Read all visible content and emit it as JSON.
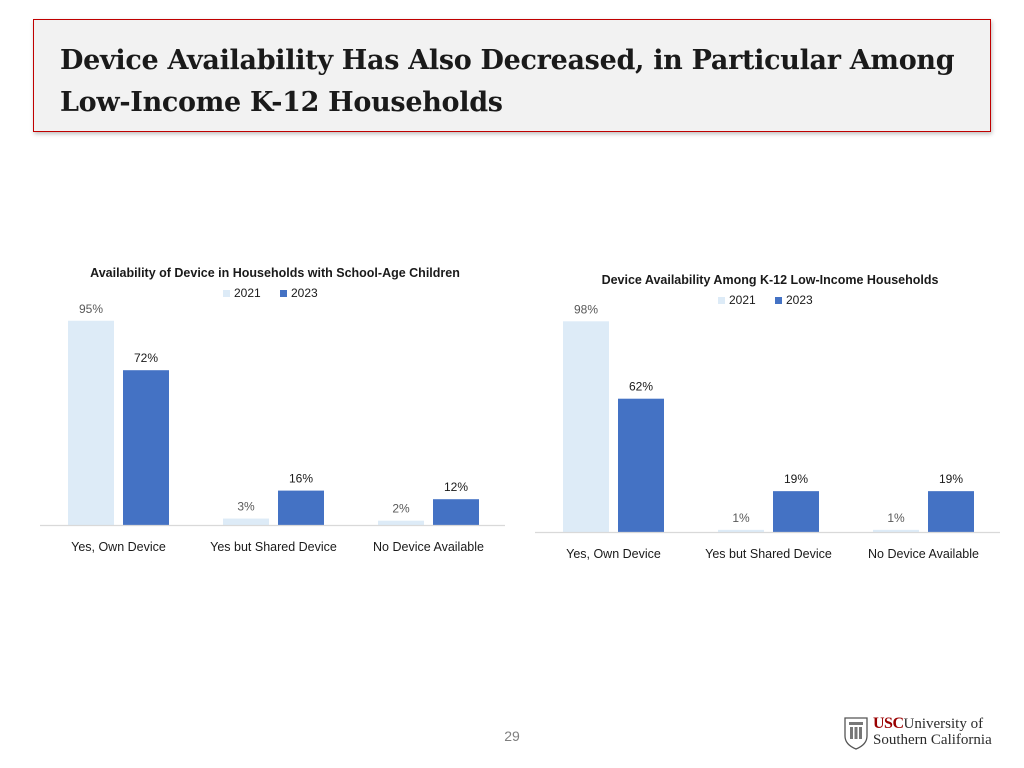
{
  "slide": {
    "title": "Device Availability Has Also Decreased, in Particular Among Low-Income K-12 Households",
    "page_number": "29",
    "logo": {
      "usc": "USC",
      "line1": "University of",
      "line2": "Southern California"
    }
  },
  "colors": {
    "series_2021": "#ddebf7",
    "series_2023": "#4472c4",
    "axis": "#d9d9d9",
    "text": "#1a1a1a",
    "label_2021": "#595959"
  },
  "chart_data": [
    {
      "type": "bar",
      "title": "Availability of Device in Households with School-Age Children",
      "categories": [
        "Yes, Own Device",
        "Yes but Shared Device",
        "No Device Available"
      ],
      "series": [
        {
          "name": "2021",
          "values": [
            95,
            3,
            2
          ],
          "labels": [
            "95%",
            "3%",
            "2%"
          ]
        },
        {
          "name": "2023",
          "values": [
            72,
            16,
            12
          ],
          "labels": [
            "72%",
            "16%",
            "12%"
          ]
        }
      ],
      "ylim": [
        0,
        100
      ],
      "legend": "top-center",
      "grid": false
    },
    {
      "type": "bar",
      "title": "Device Availability Among K-12 Low-Income Households",
      "categories": [
        "Yes, Own Device",
        "Yes but Shared Device",
        "No Device Available"
      ],
      "series": [
        {
          "name": "2021",
          "values": [
            98,
            1,
            1
          ],
          "labels": [
            "98%",
            "1%",
            "1%"
          ]
        },
        {
          "name": "2023",
          "values": [
            62,
            19,
            19
          ],
          "labels": [
            "62%",
            "19%",
            "19%"
          ]
        }
      ],
      "ylim": [
        0,
        100
      ],
      "legend": "top-center",
      "grid": false
    }
  ]
}
